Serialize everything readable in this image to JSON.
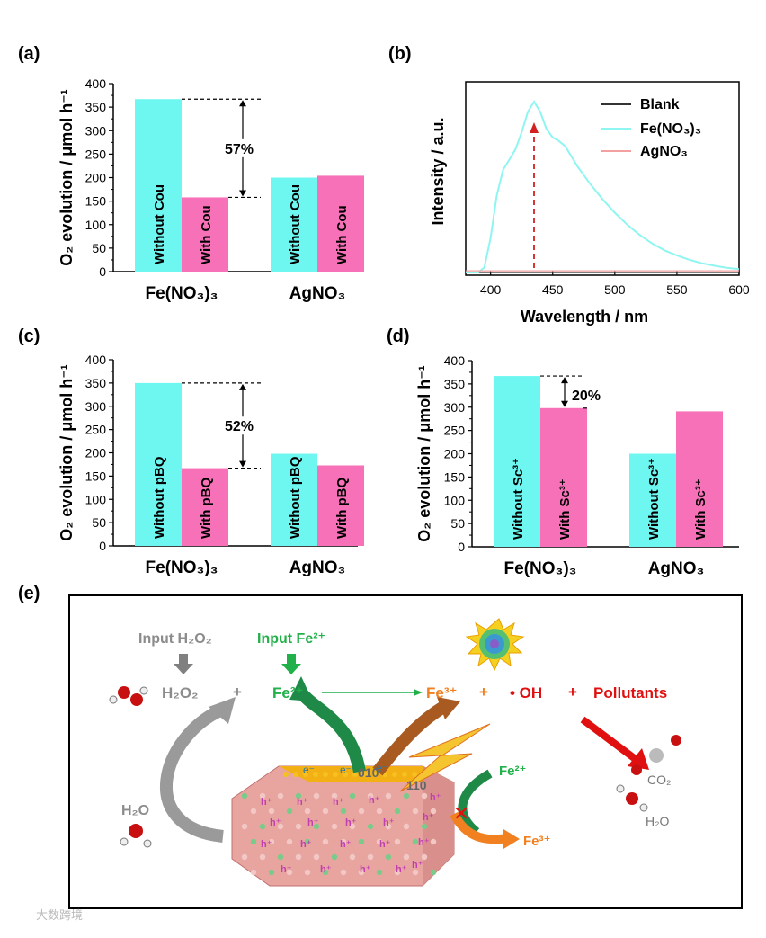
{
  "colors": {
    "without": "#6ef7f0",
    "with": "#f771b8",
    "blank": "#333333",
    "fe": "#8ff5f0",
    "ag": "#f2a0a0",
    "arrow": "#d42020"
  },
  "chart_data": [
    {
      "panel": "(a)",
      "type": "bar",
      "ylabel": "O₂ evolution / μmol h⁻¹",
      "ylim": [
        0,
        400
      ],
      "yticks": [
        "0",
        "50",
        "100",
        "150",
        "200",
        "250",
        "300",
        "350",
        "400"
      ],
      "categories": [
        "Fe(NO₃)₃",
        "AgNO₃"
      ],
      "series": [
        {
          "name": "Without Cou",
          "labels": [
            "Without Cou",
            "Without Cou"
          ],
          "values": [
            367,
            200
          ]
        },
        {
          "name": "With Cou",
          "labels": [
            "With Cou",
            "With Cou"
          ],
          "values": [
            158,
            204
          ]
        }
      ],
      "annotation": "57%"
    },
    {
      "panel": "(b)",
      "type": "line",
      "xlabel": "Wavelength / nm",
      "ylabel": "Intensity / a.u.",
      "xlim": [
        380,
        600
      ],
      "xticks": [
        "400",
        "450",
        "500",
        "550",
        "600"
      ],
      "legend": [
        "Blank",
        "Fe(NO₃)₃",
        "AgNO₃"
      ],
      "series": [
        {
          "name": "Blank",
          "x": [
            380,
            600
          ],
          "y": [
            0.0,
            0.0
          ]
        },
        {
          "name": "Fe(NO₃)₃",
          "x": [
            380,
            390,
            395,
            400,
            405,
            410,
            415,
            420,
            425,
            430,
            435,
            440,
            445,
            450,
            455,
            460,
            465,
            470,
            480,
            490,
            500,
            510,
            520,
            530,
            540,
            550,
            560,
            570,
            580,
            590,
            600
          ],
          "y": [
            0.0,
            0.0,
            0.03,
            0.2,
            0.45,
            0.6,
            0.66,
            0.72,
            0.82,
            0.94,
            1.0,
            0.94,
            0.84,
            0.79,
            0.77,
            0.74,
            0.68,
            0.62,
            0.52,
            0.43,
            0.35,
            0.28,
            0.22,
            0.17,
            0.13,
            0.1,
            0.075,
            0.055,
            0.04,
            0.028,
            0.02
          ]
        },
        {
          "name": "AgNO₃",
          "x": [
            380,
            600
          ],
          "y": [
            0.01,
            0.01
          ]
        }
      ]
    },
    {
      "panel": "(c)",
      "type": "bar",
      "ylabel": "O₂ evolution / μmol h⁻¹",
      "ylim": [
        0,
        400
      ],
      "yticks": [
        "0",
        "50",
        "100",
        "150",
        "200",
        "250",
        "300",
        "350",
        "400"
      ],
      "categories": [
        "Fe(NO₃)₃",
        "AgNO₃"
      ],
      "series": [
        {
          "name": "Without pBQ",
          "labels": [
            "Without pBQ",
            "Without pBQ"
          ],
          "values": [
            350,
            198
          ]
        },
        {
          "name": "With pBQ",
          "labels": [
            "With pBQ",
            "With pBQ"
          ],
          "values": [
            167,
            173
          ]
        }
      ],
      "annotation": "52%"
    },
    {
      "panel": "(d)",
      "type": "bar",
      "ylabel": "O₂ evolution / μmol h⁻¹",
      "ylim": [
        0,
        400
      ],
      "yticks": [
        "0",
        "50",
        "100",
        "150",
        "200",
        "250",
        "300",
        "350",
        "400"
      ],
      "categories": [
        "Fe(NO₃)₃",
        "AgNO₃"
      ],
      "series": [
        {
          "name": "Without Sc³⁺",
          "labels": [
            "Without Sc³⁺",
            "Without Sc³⁺"
          ],
          "values": [
            367,
            200
          ]
        },
        {
          "name": "With Sc³⁺",
          "labels": [
            "With Sc³⁺",
            "With Sc³⁺"
          ],
          "values": [
            298,
            291
          ]
        }
      ],
      "annotation": "20%"
    }
  ],
  "panel_labels": [
    "(a)",
    "(b)",
    "(c)",
    "(d)",
    "(e)"
  ],
  "scheme": {
    "input_h2o2": "Input H₂O₂",
    "input_fe": "Input Fe²⁺",
    "h2o2": "H₂O₂",
    "plus1": "+",
    "fe2": "Fe²⁺",
    "fe3": "Fe³⁺",
    "plus2": "+",
    "oh": "• OH",
    "plus3": "+",
    "pollutants": "Pollutants",
    "h2o_left": "H₂O",
    "fe2_right": "Fe²⁺",
    "fe3_right": "Fe³⁺",
    "co2": "CO₂",
    "h2o_right": "H₂O",
    "facet_010": "010",
    "facet_110": "110",
    "electron": "e⁻",
    "hole": "h⁺"
  },
  "watermark": "大数跨境"
}
